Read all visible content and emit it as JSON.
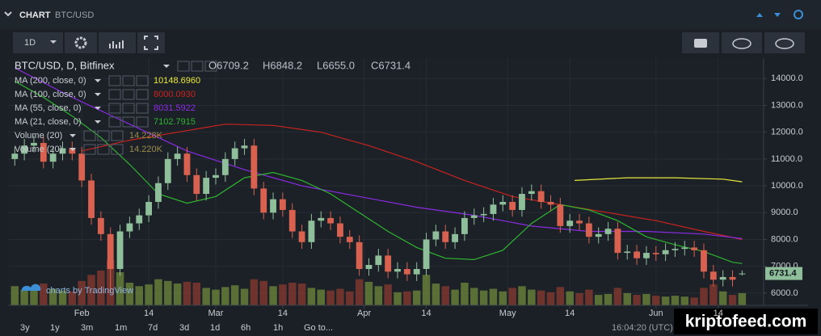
{
  "header": {
    "widget_title": "CHART",
    "widget_symbol": "BTC/USD",
    "interval_button": "1D"
  },
  "footer": {
    "ranges": [
      "3y",
      "1y",
      "3m",
      "1m",
      "7d",
      "3d",
      "1d",
      "6h",
      "1h",
      "Go to..."
    ],
    "clock": "16:04:20 (UTC)",
    "credit": "charts by TradingView",
    "watermark": "kriptofeed.com"
  },
  "chart_data": {
    "type": "candlestick",
    "title": "BTC/USD, D, Bitfinex",
    "ohlc_labels": [
      "O6709.2",
      "H6848.2",
      "L6655.0",
      "C6731.4"
    ],
    "up_color": "#8fbf9a",
    "down_color": "#d9614f",
    "xlim": [
      15.6,
      173.5
    ],
    "ylim": [
      5545,
      14760
    ],
    "xticks": [
      {
        "value": 31,
        "label": "Feb"
      },
      {
        "value": 45,
        "label": "14"
      },
      {
        "value": 59,
        "label": "Mar"
      },
      {
        "value": 73,
        "label": "14"
      },
      {
        "value": 90,
        "label": "Apr"
      },
      {
        "value": 103,
        "label": "14"
      },
      {
        "value": 120,
        "label": "May"
      },
      {
        "value": 133,
        "label": "14"
      },
      {
        "value": 151,
        "label": "Jun"
      },
      {
        "value": 164,
        "label": "14"
      }
    ],
    "yticks": [
      {
        "value": 6000,
        "label": "6000.0"
      },
      {
        "value": 7000,
        "label": "7000.0"
      },
      {
        "value": 8000,
        "label": "8000.0"
      },
      {
        "value": 9000,
        "label": "9000.0"
      },
      {
        "value": 10000,
        "label": "10000.0"
      },
      {
        "value": 11000,
        "label": "11000.0"
      },
      {
        "value": 12000,
        "label": "12000.0"
      },
      {
        "value": 13000,
        "label": "13000.0"
      },
      {
        "value": 14000,
        "label": "14000.0"
      }
    ],
    "grid": true,
    "candles": {
      "x": [
        17,
        19,
        21,
        23,
        25,
        27,
        29,
        31,
        33,
        35,
        37,
        39,
        41,
        43,
        45,
        47,
        49,
        51,
        53,
        55,
        57,
        59,
        61,
        63,
        65,
        67,
        69,
        71,
        73,
        75,
        77,
        79,
        81,
        83,
        85,
        87,
        89,
        91,
        93,
        95,
        97,
        99,
        101,
        103,
        105,
        107,
        109,
        111,
        113,
        115,
        117,
        119,
        121,
        123,
        125,
        127,
        129,
        131,
        133,
        135,
        137,
        139,
        141,
        143,
        145,
        147,
        149,
        151,
        153,
        155,
        157,
        159,
        161,
        163,
        165,
        167,
        169
      ],
      "open": [
        11000,
        11200,
        11500,
        11600,
        10900,
        11200,
        11400,
        11200,
        10200,
        8800,
        8200,
        6900,
        8300,
        8600,
        8900,
        9400,
        10100,
        11000,
        11200,
        10400,
        9700,
        10300,
        10400,
        11000,
        11400,
        11500,
        9900,
        9000,
        9500,
        9100,
        8300,
        7900,
        8700,
        8800,
        8600,
        8100,
        7900,
        6900,
        7050,
        7400,
        6800,
        6900,
        6700,
        6900,
        8000,
        8300,
        7900,
        8200,
        8800,
        8900,
        8950,
        9300,
        9400,
        9100,
        9700,
        9800,
        9400,
        9300,
        8500,
        8700,
        8600,
        8100,
        8200,
        8400,
        7500,
        7550,
        7300,
        7500,
        7450,
        7600,
        7650,
        7700,
        7600,
        6800,
        6500,
        6600,
        6709.2
      ],
      "high": [
        11450,
        11750,
        11850,
        11850,
        11450,
        11650,
        11650,
        11450,
        10450,
        9050,
        8450,
        8550,
        8850,
        9150,
        9650,
        10350,
        11250,
        11450,
        11450,
        10650,
        10550,
        10650,
        11250,
        11650,
        11750,
        11750,
        10150,
        9750,
        9750,
        9350,
        8550,
        8950,
        9050,
        9050,
        8850,
        8350,
        8150,
        7300,
        7650,
        7650,
        7150,
        7150,
        7150,
        8250,
        8550,
        8550,
        8450,
        9050,
        9150,
        9200,
        9550,
        9650,
        9650,
        9950,
        10050,
        10050,
        9650,
        9550,
        8950,
        8950,
        8850,
        8450,
        8650,
        8650,
        7800,
        7800,
        7750,
        7750,
        7850,
        7900,
        7950,
        7950,
        7850,
        7050,
        6850,
        6850,
        6848.2
      ],
      "low": [
        10750,
        10950,
        11250,
        10650,
        10650,
        10950,
        10950,
        9950,
        8550,
        7950,
        6000,
        6650,
        8050,
        8350,
        8650,
        9150,
        9850,
        10750,
        10150,
        9450,
        9450,
        10050,
        10150,
        10750,
        11150,
        9650,
        8750,
        8750,
        8850,
        8050,
        7650,
        7650,
        8450,
        8350,
        7850,
        7650,
        6650,
        6650,
        6800,
        6550,
        6550,
        6450,
        6450,
        6650,
        7750,
        7650,
        7650,
        7950,
        8550,
        8650,
        8700,
        9050,
        8850,
        8850,
        9450,
        9150,
        9050,
        8250,
        8250,
        8350,
        7850,
        7850,
        7950,
        7250,
        7250,
        7050,
        7050,
        7200,
        7200,
        7350,
        7400,
        7350,
        6550,
        6250,
        6250,
        6250,
        6655.0
      ],
      "close": [
        11200,
        11500,
        11600,
        10900,
        11200,
        11400,
        11200,
        10200,
        8800,
        8200,
        6900,
        8300,
        8600,
        8900,
        9400,
        10100,
        11000,
        11200,
        10400,
        9700,
        10300,
        10400,
        11000,
        11400,
        11500,
        9900,
        9000,
        9500,
        9100,
        8300,
        7900,
        8700,
        8800,
        8600,
        8100,
        7900,
        6900,
        7050,
        7400,
        6800,
        6900,
        6700,
        6900,
        8000,
        8300,
        7900,
        8200,
        8800,
        8900,
        8950,
        9300,
        9400,
        9100,
        9700,
        9800,
        9400,
        9300,
        8500,
        8700,
        8600,
        8100,
        8200,
        8400,
        7500,
        7550,
        7300,
        7500,
        7450,
        7600,
        7650,
        7700,
        7600,
        6800,
        6500,
        6600,
        6500,
        6731.4
      ]
    },
    "series": [
      {
        "name": "MA (200, close, 0)",
        "legend_label": "10148.6960",
        "color": "#e8e83a",
        "x": [
          134,
          145,
          155,
          165,
          169
        ],
        "values": [
          10200,
          10300,
          10300,
          10250,
          10150
        ]
      },
      {
        "name": "MA (100, close, 0)",
        "legend_label": "8000.0930",
        "color": "#c8231e",
        "x": [
          31,
          41,
          51,
          61,
          71,
          81,
          91,
          101,
          111,
          121,
          131,
          141,
          151,
          161,
          169
        ],
        "values": [
          11300,
          11700,
          12000,
          12300,
          12250,
          12000,
          11500,
          10900,
          10200,
          9600,
          9300,
          9000,
          8700,
          8300,
          8000.09
        ]
      },
      {
        "name": "MA (55, close, 0)",
        "legend_label": "8031.5922",
        "color": "#8a2be2",
        "x": [
          17,
          29,
          41,
          53,
          65,
          77,
          89,
          101,
          113,
          125,
          137,
          149,
          161,
          169
        ],
        "values": [
          14400,
          13300,
          12300,
          11300,
          10600,
          10000,
          9600,
          9200,
          8900,
          8500,
          8300,
          8300,
          8200,
          8031.59
        ]
      },
      {
        "name": "MA (21, close, 0)",
        "legend_label": "7102.7915",
        "color": "#2fb52f",
        "x": [
          17,
          23,
          29,
          35,
          41,
          47,
          53,
          59,
          65,
          71,
          77,
          83,
          89,
          95,
          101,
          107,
          113,
          119,
          125,
          131,
          137,
          143,
          149,
          155,
          161,
          167,
          169
        ],
        "values": [
          13900,
          13300,
          12600,
          11800,
          10800,
          9700,
          9350,
          9600,
          10300,
          10500,
          10200,
          9700,
          9000,
          8300,
          7700,
          7300,
          7250,
          7600,
          8600,
          9300,
          9100,
          8700,
          8100,
          7800,
          7550,
          7150,
          7102.79
        ]
      }
    ],
    "volume": {
      "legend": [
        {
          "name": "Volume (20)",
          "legend_label": "14.228K"
        },
        {
          "name": "Volume (20)",
          "legend_label": "14.220K"
        }
      ],
      "values": [
        22000,
        18000,
        20000,
        25000,
        19000,
        17000,
        16000,
        28000,
        35000,
        40000,
        52000,
        38000,
        26000,
        22000,
        24000,
        30000,
        28000,
        25000,
        27000,
        26000,
        20000,
        18000,
        21000,
        23000,
        19000,
        30000,
        28000,
        22000,
        24000,
        26000,
        25000,
        20000,
        18000,
        17000,
        19000,
        16000,
        30000,
        27000,
        22000,
        24000,
        15000,
        16000,
        17000,
        35000,
        25000,
        22000,
        18000,
        26000,
        20000,
        17000,
        19000,
        16000,
        20000,
        22000,
        18000,
        17000,
        15000,
        21000,
        16000,
        14000,
        18000,
        12000,
        13000,
        20000,
        14000,
        12000,
        13000,
        11000,
        10000,
        11000,
        10000,
        9000,
        20000,
        24000,
        16000,
        12000,
        14000
      ]
    }
  }
}
